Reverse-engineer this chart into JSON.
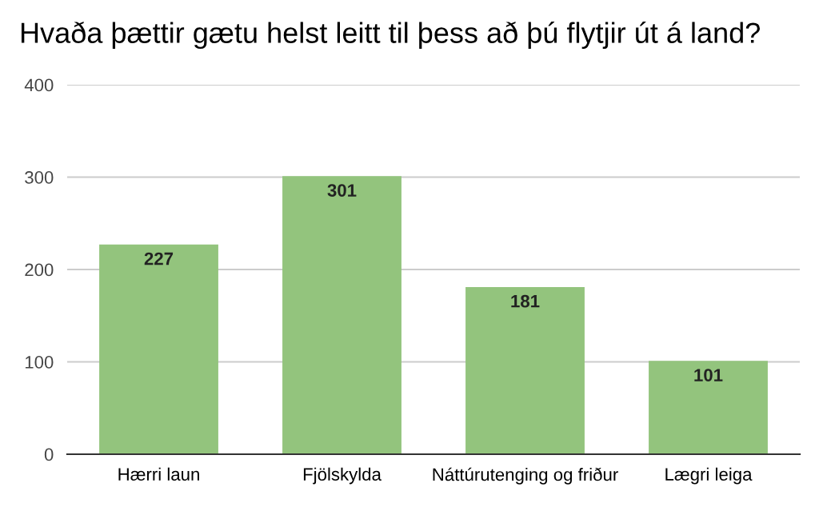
{
  "chart_data": {
    "type": "bar",
    "title": "Hvaða þættir gætu helst leitt til þess að þú flytjir út á land?",
    "categories": [
      "Hærri laun",
      "Fjölskylda",
      "Náttúrutenging og friður",
      "Lægri leiga"
    ],
    "values": [
      227,
      301,
      181,
      101
    ],
    "color": "#93c47d",
    "data_labels": true,
    "ylim": [
      0,
      400
    ],
    "yticks": [
      0,
      100,
      200,
      300,
      400
    ],
    "grid": "y"
  }
}
